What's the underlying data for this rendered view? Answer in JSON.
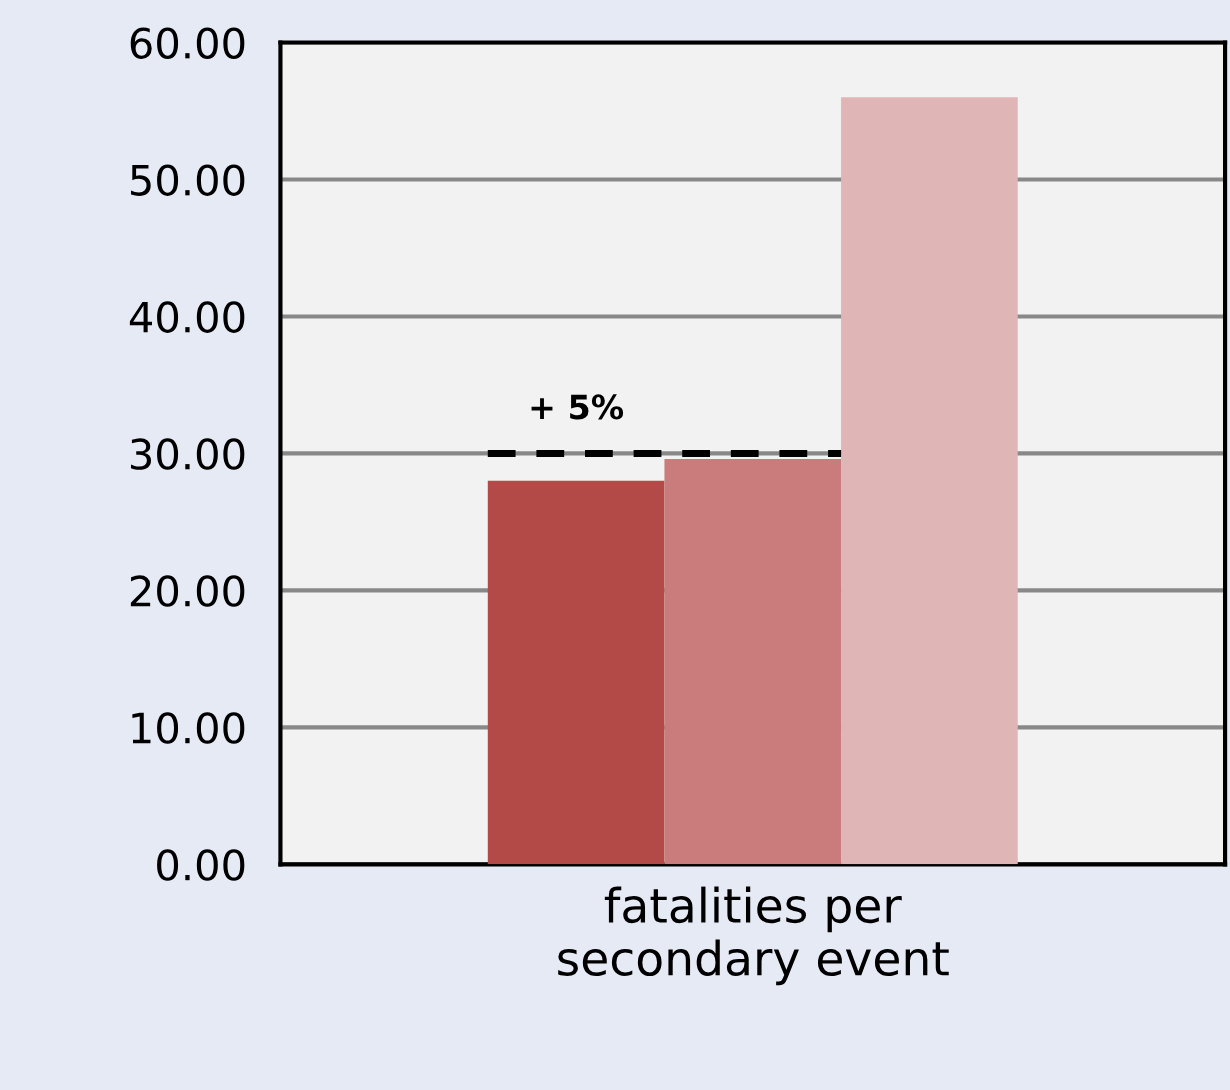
{
  "chart_data": {
    "type": "bar",
    "categories": [
      "fatalities per\nsecondary event"
    ],
    "series": [
      {
        "color": "#b34a48",
        "values": [
          28.0
        ]
      },
      {
        "color": "#c97c7b",
        "values": [
          29.6
        ]
      },
      {
        "color": "#dfb5b5",
        "values": [
          56.0
        ]
      }
    ],
    "ylim": [
      0,
      60
    ],
    "yticks": [
      {
        "value": 0,
        "label": "0.00"
      },
      {
        "value": 10,
        "label": "10.00"
      },
      {
        "value": 20,
        "label": "20.00"
      },
      {
        "value": 30,
        "label": "30.00"
      },
      {
        "value": 40,
        "label": "40.00"
      },
      {
        "value": 50,
        "label": "50.00"
      },
      {
        "value": 60,
        "label": "60.00"
      }
    ],
    "ref_lines": [
      {
        "axis": "y",
        "value": 30,
        "color": "#000000",
        "line_style": "dashed"
      }
    ],
    "annotations": [
      "+ 5%"
    ],
    "grid": "y",
    "legend": false
  }
}
